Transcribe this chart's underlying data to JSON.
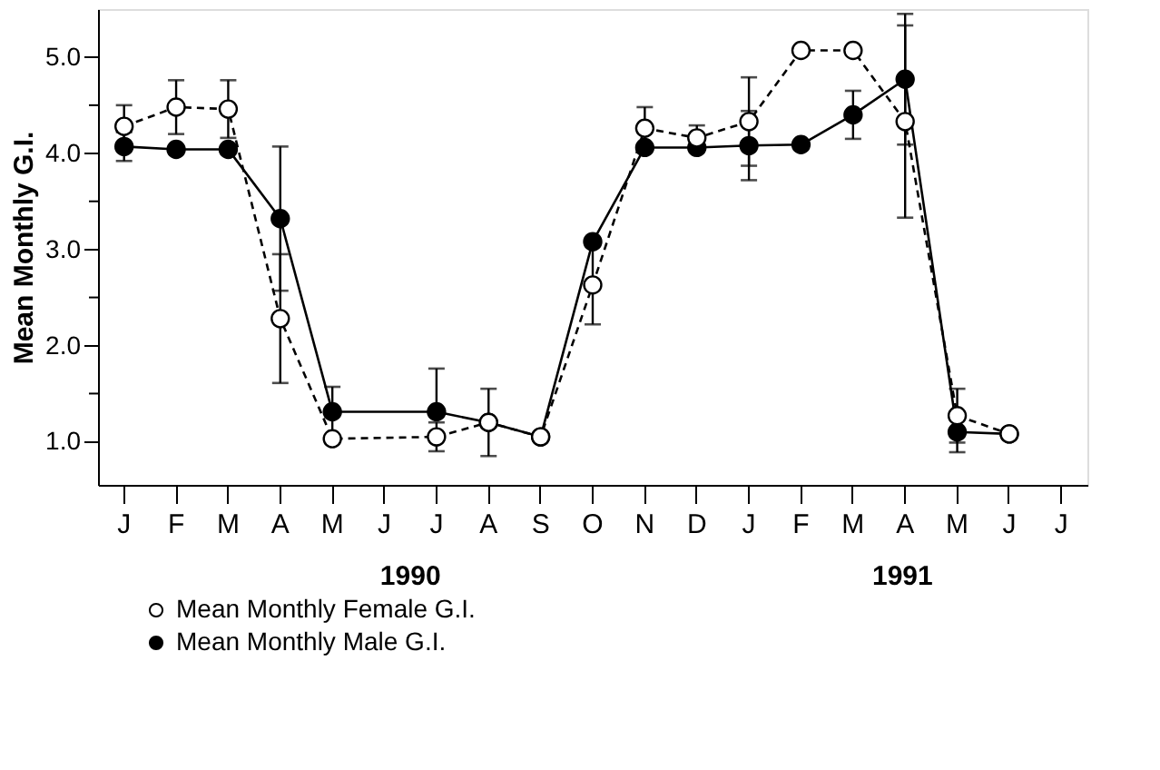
{
  "chart_data": {
    "type": "line",
    "ylabel": "Mean Monthly G.I.",
    "categories": [
      "J",
      "F",
      "M",
      "A",
      "M",
      "J",
      "J",
      "A",
      "S",
      "O",
      "N",
      "D",
      "J",
      "F",
      "M",
      "A",
      "M",
      "J",
      "J"
    ],
    "series": [
      {
        "name": "Mean Monthly Female G.I.",
        "color": "#ffffff",
        "line_style": "dashed",
        "values": [
          4.28,
          4.48,
          4.46,
          2.28,
          1.03,
          null,
          1.05,
          1.2,
          1.05,
          2.63,
          4.26,
          4.16,
          4.33,
          5.07,
          5.07,
          4.33,
          1.27,
          1.08,
          null
        ],
        "errors": [
          0.22,
          0.28,
          0.3,
          0.67,
          null,
          null,
          0.15,
          0.35,
          null,
          0.41,
          0.22,
          0.13,
          0.46,
          null,
          null,
          1.0,
          0.28,
          null,
          null
        ]
      },
      {
        "name": "Mean Monthly Male G.I.",
        "color": "#000000",
        "line_style": "solid",
        "values": [
          4.07,
          4.04,
          4.04,
          3.32,
          1.31,
          null,
          1.31,
          1.2,
          1.05,
          3.08,
          4.06,
          4.06,
          4.08,
          4.09,
          4.4,
          4.77,
          1.1,
          1.08,
          null
        ],
        "errors": [
          0.15,
          null,
          null,
          0.75,
          0.26,
          null,
          [
            1.31,
            1.76
          ],
          null,
          null,
          null,
          null,
          null,
          0.36,
          null,
          0.25,
          0.68,
          0.21,
          null,
          null
        ]
      }
    ],
    "ylim": [
      0.55,
      5.5
    ],
    "yticks": [
      {
        "value": 1,
        "label": "1.0"
      },
      {
        "value": 1.5,
        "label": null
      },
      {
        "value": 2,
        "label": "2.0"
      },
      {
        "value": 2.5,
        "label": null
      },
      {
        "value": 3,
        "label": "3.0"
      },
      {
        "value": 3.5,
        "label": null
      },
      {
        "value": 4,
        "label": "4.0"
      },
      {
        "value": 4.5,
        "label": null
      },
      {
        "value": 5,
        "label": "5.0"
      }
    ],
    "annotations": [
      "1990",
      "1991"
    ],
    "marker": "circle",
    "grid": false,
    "legend": "bottom"
  }
}
